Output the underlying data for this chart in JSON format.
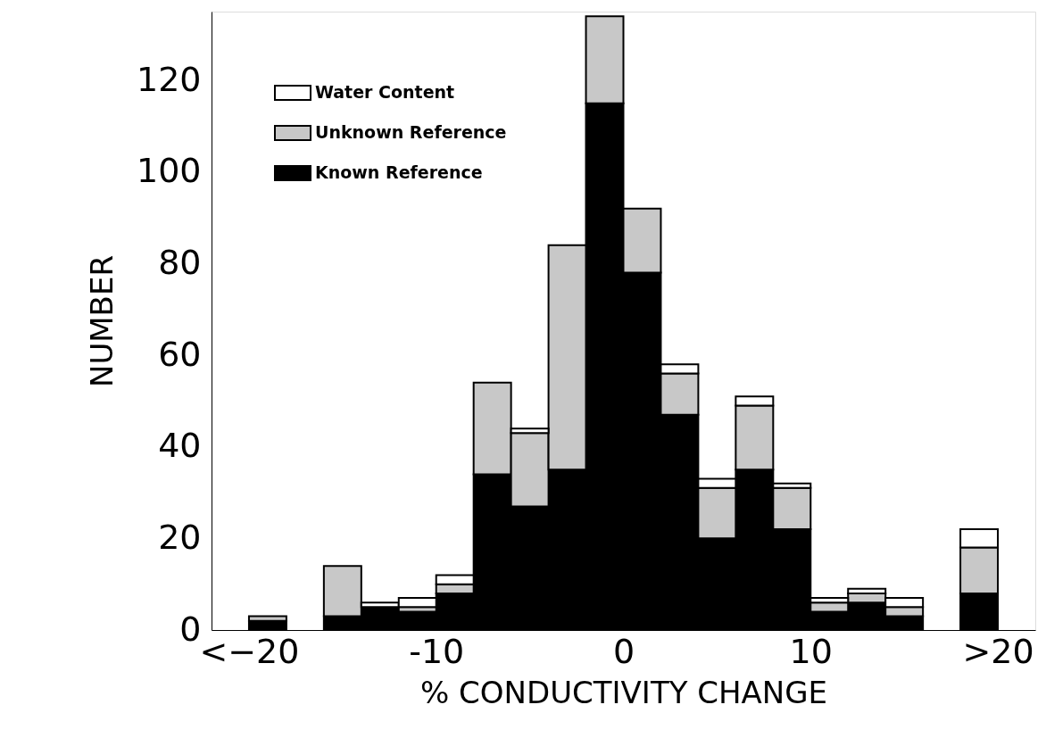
{
  "chart_data": {
    "type": "bar",
    "xlabel": "% CONDUCTIVITY CHANGE",
    "ylabel": "NUMBER",
    "stacked": true,
    "x": [
      -19,
      -15,
      -13,
      -11,
      -9,
      -7,
      -5,
      -3,
      -1,
      1,
      3,
      5,
      7,
      9,
      11,
      13,
      15,
      19
    ],
    "series": [
      {
        "name": "Known Reference",
        "color": "#000000",
        "values": [
          2,
          3,
          5,
          4,
          8,
          34,
          27,
          35,
          115,
          78,
          47,
          20,
          35,
          22,
          4,
          6,
          3,
          8
        ]
      },
      {
        "name": "Unknown Reference",
        "color": "#c8c8c8",
        "values": [
          1,
          11,
          null,
          1,
          2,
          20,
          16,
          49,
          19,
          14,
          9,
          11,
          14,
          9,
          2,
          2,
          2,
          10
        ]
      },
      {
        "name": "Water Content",
        "color": "#ffffff",
        "values": [
          null,
          null,
          1,
          2,
          2,
          null,
          1,
          null,
          null,
          null,
          2,
          2,
          2,
          1,
          1,
          1,
          2,
          4
        ]
      }
    ],
    "xlim": [
      -22,
      22
    ],
    "ylim": [
      0,
      135
    ],
    "xticks": [
      {
        "value": -20,
        "label": "<−20"
      },
      -10,
      0,
      10,
      {
        "value": 20,
        "label": ">20"
      }
    ],
    "yticks": [
      0,
      20,
      40,
      60,
      80,
      100,
      120
    ],
    "legend": "top left",
    "grid": false
  }
}
